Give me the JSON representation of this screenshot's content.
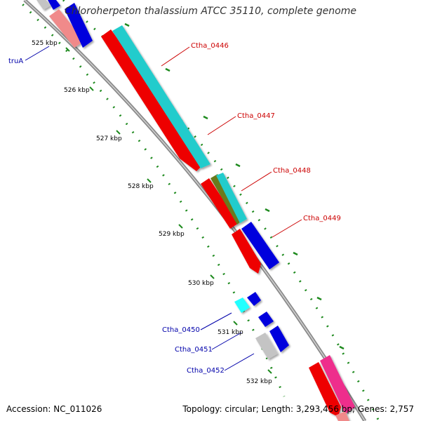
{
  "title": "Chloroherpeton thalassium ATCC 35110, complete genome",
  "footer": {
    "accession": "Accession: NC_011026",
    "summary": "Topology: circular; Length: 3,293,456 bp; Genes: 2,757"
  },
  "colors": {
    "backbone": "#8a8a8a",
    "tick": "#1e8a1e",
    "label_red": "#cc0000",
    "label_blue": "#0000aa",
    "red": "#ee0000",
    "blue": "#0000dd",
    "cyan": "#22cccc",
    "olive": "#6b7a1e",
    "grey": "#c4c4c4",
    "pink": "#f08a8a",
    "magenta": "#ee2d8c"
  },
  "scale_labels": [
    "525 kbp",
    "526 kbp",
    "527 kbp",
    "528 kbp",
    "529 kbp",
    "530 kbp",
    "531 kbp",
    "532 kbp"
  ],
  "gene_labels": [
    {
      "id": "gene-label-trua",
      "text": "truA",
      "color": "blue"
    },
    {
      "id": "gene-label-ctha-0446",
      "text": "Ctha_0446",
      "color": "red"
    },
    {
      "id": "gene-label-ctha-0447",
      "text": "Ctha_0447",
      "color": "red"
    },
    {
      "id": "gene-label-ctha-0448",
      "text": "Ctha_0448",
      "color": "red"
    },
    {
      "id": "gene-label-ctha-0449",
      "text": "Ctha_0449",
      "color": "red"
    },
    {
      "id": "gene-label-ctha-0450",
      "text": "Ctha_0450",
      "color": "blue"
    },
    {
      "id": "gene-label-ctha-0451",
      "text": "Ctha_0451",
      "color": "blue"
    },
    {
      "id": "gene-label-ctha-0452",
      "text": "Ctha_0452",
      "color": "blue"
    }
  ]
}
